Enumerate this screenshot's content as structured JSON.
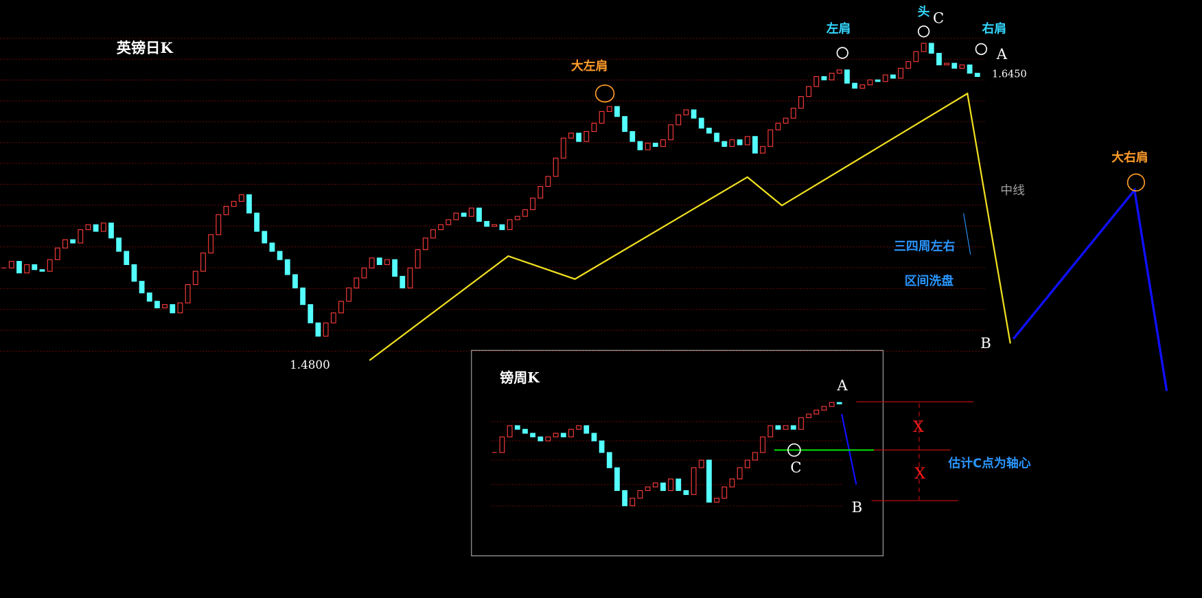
{
  "chart_data": [
    {
      "type": "candlestick",
      "title": "英镑日K",
      "up_color": "#ff3c3c",
      "down_color": "#54ffff",
      "ylim": [
        1.4745,
        1.691
      ],
      "values": [
        1.53,
        1.534,
        1.527,
        1.532,
        1.529,
        1.528,
        1.535,
        1.542,
        1.547,
        1.545,
        1.553,
        1.556,
        1.552,
        1.557,
        1.548,
        1.54,
        1.532,
        1.522,
        1.515,
        1.51,
        1.506,
        1.508,
        1.503,
        1.509,
        1.52,
        1.528,
        1.539,
        1.55,
        1.562,
        1.567,
        1.57,
        1.574,
        1.563,
        1.552,
        1.545,
        1.54,
        1.535,
        1.526,
        1.518,
        1.508,
        1.497,
        1.489,
        1.497,
        1.503,
        1.51,
        1.518,
        1.524,
        1.53,
        1.536,
        1.532,
        1.535,
        1.525,
        1.518,
        1.53,
        1.541,
        1.548,
        1.553,
        1.556,
        1.559,
        1.563,
        1.561,
        1.566,
        1.558,
        1.555,
        1.556,
        1.553,
        1.559,
        1.561,
        1.565,
        1.572,
        1.579,
        1.585,
        1.596,
        1.608,
        1.611,
        1.606,
        1.612,
        1.617,
        1.624,
        1.627,
        1.621,
        1.612,
        1.606,
        1.601,
        1.605,
        1.603,
        1.607,
        1.616,
        1.622,
        1.625,
        1.62,
        1.614,
        1.611,
        1.606,
        1.603,
        1.607,
        1.604,
        1.609,
        1.599,
        1.603,
        1.613,
        1.617,
        1.62,
        1.626,
        1.633,
        1.639,
        1.645,
        1.643,
        1.647,
        1.649,
        1.641,
        1.638,
        1.64,
        1.643,
        1.642,
        1.646,
        1.644,
        1.65,
        1.654,
        1.66,
        1.665,
        1.659,
        1.652,
        1.653,
        1.65,
        1.652,
        1.647,
        1.645
      ],
      "price_labels": [
        {
          "value": 1.48,
          "label": "1.4800"
        },
        {
          "value": 1.645,
          "label": "1.6450"
        }
      ],
      "annotations": [
        "大左肩",
        "左肩",
        "头",
        "C",
        "右肩",
        "A",
        "中线",
        "三四周左右",
        "区间洗盘",
        "B",
        "大右肩"
      ]
    },
    {
      "type": "candlestick",
      "title": "镑周K",
      "up_color": "#ff3c3c",
      "down_color": "#54ffff",
      "ylim": [
        1.35,
        1.72
      ],
      "values": [
        1.561,
        1.604,
        1.635,
        1.625,
        1.614,
        1.604,
        1.593,
        1.604,
        1.614,
        1.604,
        1.625,
        1.635,
        1.614,
        1.593,
        1.561,
        1.519,
        1.456,
        1.414,
        1.435,
        1.456,
        1.466,
        1.477,
        1.456,
        1.488,
        1.456,
        1.445,
        1.519,
        1.54,
        1.424,
        1.435,
        1.466,
        1.488,
        1.519,
        1.54,
        1.561,
        1.604,
        1.635,
        1.625,
        1.635,
        1.625,
        1.657,
        1.667,
        1.678,
        1.688,
        1.699,
        1.695
      ],
      "annotations": [
        "A",
        "C",
        "B",
        "X",
        "X",
        "估计C点为轴心"
      ]
    }
  ]
}
